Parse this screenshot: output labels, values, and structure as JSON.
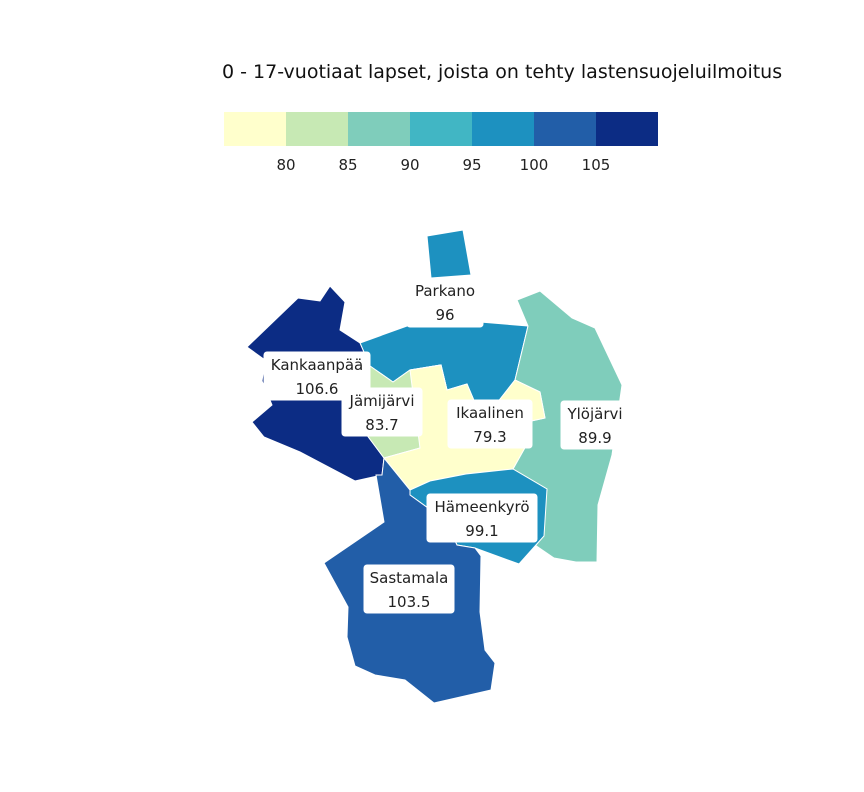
{
  "chart_data": {
    "type": "choropleth",
    "title": "0 - 17-vuotiaat lapset, joista on tehty lastensuojeluilmoitus",
    "legend": {
      "placement": "top",
      "colors": [
        "#ffffcc",
        "#c7e9b4",
        "#7fcdbb",
        "#41b6c4",
        "#1d91c0",
        "#225ea8",
        "#0c2c84"
      ],
      "breaks": [
        "80",
        "85",
        "90",
        "95",
        "100",
        "105"
      ]
    },
    "regions": [
      {
        "name": "Parkano",
        "value": 96,
        "value_label": "96",
        "color": "#1d91c0"
      },
      {
        "name": "Kankaanpää",
        "value": 106.6,
        "value_label": "106.6",
        "color": "#0c2c84"
      },
      {
        "name": "Jämijärvi",
        "value": 83.7,
        "value_label": "83.7",
        "color": "#c7e9b4"
      },
      {
        "name": "Ikaalinen",
        "value": 79.3,
        "value_label": "79.3",
        "color": "#ffffcc"
      },
      {
        "name": "Ylöjärvi",
        "value": 89.9,
        "value_label": "89.9",
        "color": "#7fcdbb"
      },
      {
        "name": "Hämeenkyrö",
        "value": 99.1,
        "value_label": "99.1",
        "color": "#1d91c0"
      },
      {
        "name": "Sastamala",
        "value": 103.5,
        "value_label": "103.5",
        "color": "#225ea8"
      }
    ]
  }
}
